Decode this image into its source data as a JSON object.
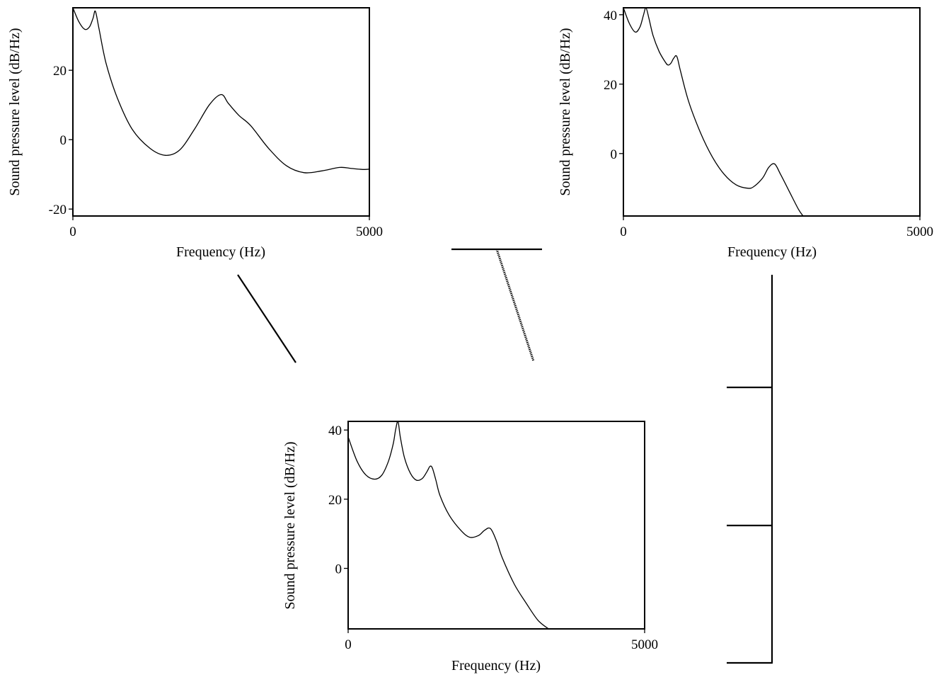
{
  "chart_data": [
    {
      "type": "line",
      "title": "",
      "xlabel": "Frequency (Hz)",
      "ylabel": "Sound pressure level (dB/Hz)",
      "xlim": [
        0,
        5000
      ],
      "ylim": [
        -22,
        38
      ],
      "x_ticks": [
        0,
        5000
      ],
      "y_ticks": [
        -20,
        0,
        20
      ],
      "x_tick_labels": [
        "0",
        "5000"
      ],
      "y_tick_labels": [
        "-20",
        "0",
        "20"
      ],
      "grid": false,
      "series": [
        {
          "x": [
            0,
            100,
            200,
            280,
            340,
            380,
            440,
            560,
            750,
            1000,
            1300,
            1560,
            1800,
            2050,
            2300,
            2500,
            2620,
            2800,
            3000,
            3300,
            3600,
            3900,
            4200,
            4500,
            4700,
            4900,
            5000
          ],
          "y": [
            38,
            34,
            31.8,
            32.5,
            35,
            37,
            32,
            22,
            12,
            3,
            -2.5,
            -4.5,
            -3,
            3,
            10,
            13,
            10.5,
            7,
            4,
            -2.5,
            -7.5,
            -9.5,
            -9,
            -8,
            -8.3,
            -8.6,
            -8.5
          ]
        }
      ]
    },
    {
      "type": "line",
      "title": "",
      "xlabel": "Frequency (Hz)",
      "ylabel": "Sound pressure level (dB/Hz)",
      "xlim": [
        0,
        5000
      ],
      "ylim": [
        -18,
        42
      ],
      "x_ticks": [
        0,
        5000
      ],
      "y_ticks": [
        0,
        20,
        40
      ],
      "x_tick_labels": [
        "0",
        "5000"
      ],
      "y_tick_labels": [
        "0",
        "20",
        "40"
      ],
      "grid": false,
      "series": [
        {
          "x": [
            0,
            100,
            200,
            280,
            340,
            380,
            430,
            500,
            600,
            700,
            750,
            800,
            850,
            900,
            960,
            1100,
            1300,
            1500,
            1700,
            1900,
            2100,
            2200,
            2350,
            2450,
            2550,
            2650,
            2800,
            2950,
            3030
          ],
          "y": [
            42,
            37.5,
            35,
            36.5,
            40,
            42,
            39,
            34,
            29.5,
            26.5,
            25.5,
            26,
            27.5,
            28,
            24,
            15,
            6,
            -1,
            -6,
            -9,
            -10,
            -9.5,
            -7,
            -4,
            -3,
            -6,
            -11,
            -16,
            -18
          ]
        }
      ]
    },
    {
      "type": "line",
      "title": "",
      "xlabel": "Frequency (Hz)",
      "ylabel": "Sound pressure level (dB/Hz)",
      "xlim": [
        0,
        5000
      ],
      "ylim": [
        -17.5,
        42.5
      ],
      "x_ticks": [
        0,
        5000
      ],
      "y_ticks": [
        0,
        20,
        40
      ],
      "x_tick_labels": [
        "0",
        "5000"
      ],
      "y_tick_labels": [
        "0",
        "20",
        "40"
      ],
      "grid": false,
      "series": [
        {
          "x": [
            0,
            150,
            300,
            450,
            570,
            680,
            760,
            800,
            840,
            880,
            950,
            1050,
            1150,
            1250,
            1330,
            1380,
            1420,
            1480,
            1550,
            1700,
            1900,
            2050,
            2200,
            2300,
            2400,
            2500,
            2600,
            2800,
            3000,
            3200,
            3380
          ],
          "y": [
            38,
            31,
            27,
            25.8,
            27,
            31,
            36,
            40,
            42.5,
            38,
            32,
            27.5,
            25.5,
            26,
            28,
            29.5,
            29,
            25.5,
            21,
            15.5,
            11,
            9,
            9.5,
            11,
            11.5,
            8,
            3,
            -4.5,
            -10,
            -15,
            -17.5
          ]
        }
      ]
    }
  ]
}
